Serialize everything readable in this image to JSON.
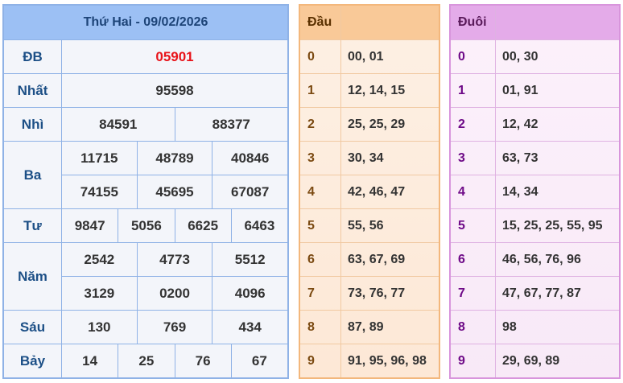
{
  "results": {
    "title": "Thứ Hai - 09/02/2026",
    "prizes": [
      {
        "label": "ĐB",
        "rows": [
          [
            "05901"
          ]
        ],
        "highlight": true
      },
      {
        "label": "Nhất",
        "rows": [
          [
            "95598"
          ]
        ]
      },
      {
        "label": "Nhì",
        "rows": [
          [
            "84591",
            "88377"
          ]
        ]
      },
      {
        "label": "Ba",
        "rows": [
          [
            "11715",
            "48789",
            "40846"
          ],
          [
            "74155",
            "45695",
            "67087"
          ]
        ]
      },
      {
        "label": "Tư",
        "rows": [
          [
            "9847",
            "5056",
            "6625",
            "6463"
          ]
        ]
      },
      {
        "label": "Năm",
        "rows": [
          [
            "2542",
            "4773",
            "5512"
          ],
          [
            "3129",
            "0200",
            "4096"
          ]
        ]
      },
      {
        "label": "Sáu",
        "rows": [
          [
            "130",
            "769",
            "434"
          ]
        ]
      },
      {
        "label": "Bảy",
        "rows": [
          [
            "14",
            "25",
            "76",
            "67"
          ]
        ]
      }
    ]
  },
  "dau": {
    "header": "Đầu",
    "rows": [
      {
        "digit": "0",
        "values": "00, 01"
      },
      {
        "digit": "1",
        "values": "12, 14, 15"
      },
      {
        "digit": "2",
        "values": "25, 25, 29"
      },
      {
        "digit": "3",
        "values": "30, 34"
      },
      {
        "digit": "4",
        "values": "42, 46, 47"
      },
      {
        "digit": "5",
        "values": "55, 56"
      },
      {
        "digit": "6",
        "values": "63, 67, 69"
      },
      {
        "digit": "7",
        "values": "73, 76, 77"
      },
      {
        "digit": "8",
        "values": "87, 89"
      },
      {
        "digit": "9",
        "values": "91, 95, 96, 98"
      }
    ]
  },
  "duoi": {
    "header": "Đuôi",
    "rows": [
      {
        "digit": "0",
        "values": "00, 30"
      },
      {
        "digit": "1",
        "values": "01, 91"
      },
      {
        "digit": "2",
        "values": "12, 42"
      },
      {
        "digit": "3",
        "values": "63, 73"
      },
      {
        "digit": "4",
        "values": "14, 34"
      },
      {
        "digit": "5",
        "values": "15, 25, 25, 55, 95"
      },
      {
        "digit": "6",
        "values": "46, 56, 76, 96"
      },
      {
        "digit": "7",
        "values": "47, 67, 77, 87"
      },
      {
        "digit": "8",
        "values": "98"
      },
      {
        "digit": "9",
        "values": "29, 69, 89"
      }
    ]
  },
  "colors": {
    "special_prize": "#e8141a",
    "results_header": "#9cc0f4",
    "dau_header": "#f9c998",
    "duoi_header": "#e4abe9"
  }
}
